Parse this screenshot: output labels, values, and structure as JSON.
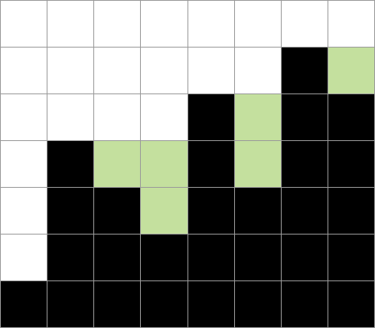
{
  "game": {
    "type": "water-fill-grid",
    "cols": 8,
    "rows": 7,
    "legend": {
      "empty": "#ffffff",
      "filled": "#000000",
      "water": "#c4e09e",
      "grid_line": "#9a9a9a"
    },
    "cells": [
      [
        "empty",
        "empty",
        "empty",
        "empty",
        "empty",
        "empty",
        "empty",
        "empty"
      ],
      [
        "empty",
        "empty",
        "empty",
        "empty",
        "empty",
        "empty",
        "filled",
        "water"
      ],
      [
        "empty",
        "empty",
        "empty",
        "empty",
        "filled",
        "water",
        "filled",
        "filled"
      ],
      [
        "empty",
        "filled",
        "water",
        "water",
        "filled",
        "water",
        "filled",
        "filled"
      ],
      [
        "empty",
        "filled",
        "filled",
        "water",
        "filled",
        "filled",
        "filled",
        "filled"
      ],
      [
        "empty",
        "filled",
        "filled",
        "filled",
        "filled",
        "filled",
        "filled",
        "filled"
      ],
      [
        "filled",
        "filled",
        "filled",
        "filled",
        "filled",
        "filled",
        "filled",
        "filled"
      ]
    ]
  }
}
